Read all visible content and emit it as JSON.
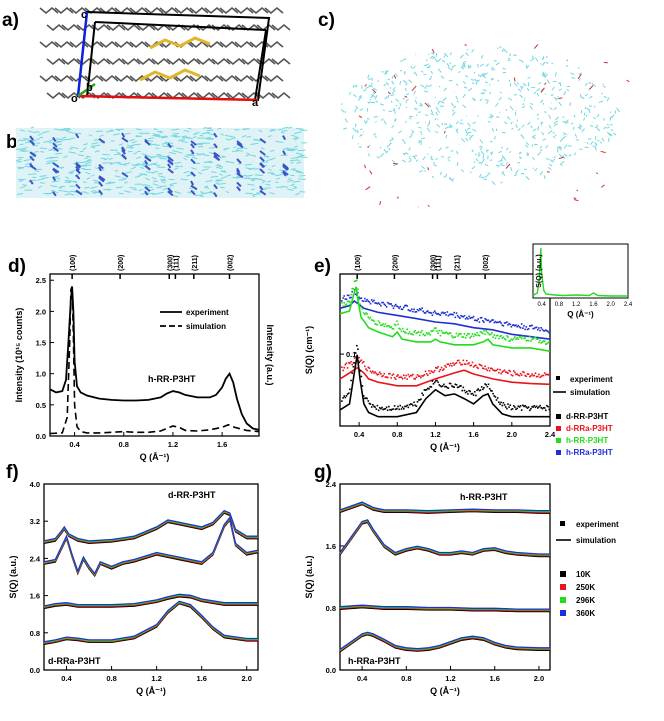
{
  "panel_labels": {
    "a": "a)",
    "b": "b)",
    "c": "c)",
    "d": "d)",
    "e": "e)",
    "f": "f)",
    "g": "g)"
  },
  "cell_labels": {
    "c": "c",
    "o": "o",
    "b": "b",
    "a": "a"
  },
  "colors": {
    "black": "#000000",
    "red": "#e8141b",
    "green": "#22dd1b",
    "blue": "#1f2fd6",
    "cyan": "#6fd7e0",
    "atom_blue": "#3a55c8",
    "sulfur": "#e0b72a",
    "cell_red": "#e01010",
    "cell_blue": "#1020e0",
    "carbon": "#555555"
  },
  "chart_data": [
    {
      "id": "d",
      "type": "line",
      "xlabel": "Q (Å⁻¹)",
      "ylabel": "Intensity (10¹⁵ counts)",
      "ylabel_right": "Intensity (a.u.)",
      "xlim": [
        0.2,
        1.9
      ],
      "ylim": [
        0,
        2.6
      ],
      "xticks": [
        0.4,
        0.8,
        1.2,
        1.6
      ],
      "xtick_labels": [
        "0.4",
        "0.8",
        "1.2",
        "1.6"
      ],
      "yticks": [
        0,
        0.5,
        1.0,
        1.5,
        2.0,
        2.5
      ],
      "ytick_labels": [
        "0.0",
        "0.5",
        "1.0",
        "1.5",
        "2.0",
        "2.5"
      ],
      "peak_labels": [
        {
          "label": "(100)",
          "q": 0.38
        },
        {
          "label": "(200)",
          "q": 0.77
        },
        {
          "label": "(300)",
          "q": 1.17
        },
        {
          "label": "(111)",
          "q": 1.22
        },
        {
          "label": "(211)",
          "q": 1.37
        },
        {
          "label": "(002)",
          "q": 1.66
        }
      ],
      "legend": [
        {
          "label": "experiment",
          "style": "solid"
        },
        {
          "label": "simulation",
          "style": "dashed"
        }
      ],
      "annotation": "h-RR-P3HT",
      "series": [
        {
          "name": "experiment",
          "style": "solid",
          "x": [
            0.2,
            0.25,
            0.3,
            0.33,
            0.35,
            0.37,
            0.38,
            0.39,
            0.4,
            0.42,
            0.45,
            0.5,
            0.6,
            0.7,
            0.8,
            0.9,
            1.0,
            1.1,
            1.15,
            1.2,
            1.25,
            1.3,
            1.4,
            1.5,
            1.55,
            1.6,
            1.63,
            1.66,
            1.69,
            1.72,
            1.76,
            1.8,
            1.85,
            1.9
          ],
          "y": [
            0.75,
            0.7,
            0.72,
            0.9,
            1.5,
            2.2,
            2.4,
            2.0,
            1.2,
            0.8,
            0.7,
            0.65,
            0.6,
            0.58,
            0.57,
            0.57,
            0.58,
            0.62,
            0.68,
            0.72,
            0.7,
            0.66,
            0.62,
            0.62,
            0.66,
            0.78,
            0.92,
            1.0,
            0.86,
            0.6,
            0.35,
            0.2,
            0.12,
            0.1
          ]
        },
        {
          "name": "simulation",
          "style": "dashed",
          "x": [
            0.2,
            0.3,
            0.34,
            0.36,
            0.37,
            0.38,
            0.39,
            0.4,
            0.42,
            0.45,
            0.5,
            0.6,
            0.7,
            0.8,
            0.9,
            1.0,
            1.1,
            1.2,
            1.25,
            1.3,
            1.4,
            1.5,
            1.6,
            1.65,
            1.7,
            1.8,
            1.9
          ],
          "y": [
            0.04,
            0.05,
            0.3,
            1.5,
            2.35,
            2.4,
            1.6,
            0.5,
            0.15,
            0.07,
            0.05,
            0.05,
            0.06,
            0.07,
            0.06,
            0.06,
            0.08,
            0.16,
            0.14,
            0.09,
            0.08,
            0.1,
            0.14,
            0.18,
            0.14,
            0.09,
            0.07
          ]
        }
      ]
    },
    {
      "id": "e",
      "type": "line",
      "xlabel": "Q (Å⁻¹)",
      "ylabel": "S(Q) (cm⁻¹)",
      "xlim": [
        0.2,
        2.4
      ],
      "ylim_log": [
        0.02,
        0.6
      ],
      "xticks": [
        0.4,
        0.8,
        1.2,
        1.6,
        2.0,
        2.4
      ],
      "xtick_labels": [
        "0.4",
        "0.8",
        "1.2",
        "1.6",
        "2.0",
        "2.4"
      ],
      "ytick_labels": [
        {
          "label": "0.1",
          "value": 0.1
        }
      ],
      "peak_labels": [
        {
          "label": "(100)",
          "q": 0.38
        },
        {
          "label": "(200)",
          "q": 0.77
        },
        {
          "label": "(300)",
          "q": 1.17
        },
        {
          "label": "(111)",
          "q": 1.22
        },
        {
          "label": "(211)",
          "q": 1.42
        },
        {
          "label": "(002)",
          "q": 1.72
        }
      ],
      "legend_style": [
        {
          "label": "experiment",
          "style": "dots"
        },
        {
          "label": "simulation",
          "style": "line"
        }
      ],
      "legend_samples": [
        {
          "label": "d-RR-P3HT",
          "color": "#000000",
          "marker": "square"
        },
        {
          "label": "d-RRa-P3HT",
          "color": "#e8141b",
          "marker": "circle"
        },
        {
          "label": "h-RR-P3HT",
          "color": "#22dd1b",
          "marker": "triangle"
        },
        {
          "label": "h-RRa-P3HT",
          "color": "#1f2fd6",
          "marker": "triangle-down"
        }
      ],
      "series": [
        {
          "name": "h-RRa-P3HT",
          "color": "#1f2fd6",
          "x": [
            0.2,
            0.3,
            0.35,
            0.4,
            0.45,
            0.5,
            0.6,
            0.8,
            1.0,
            1.2,
            1.4,
            1.6,
            1.8,
            2.0,
            2.2,
            2.4
          ],
          "y": [
            0.34,
            0.36,
            0.4,
            0.37,
            0.34,
            0.33,
            0.31,
            0.29,
            0.27,
            0.25,
            0.24,
            0.22,
            0.21,
            0.19,
            0.18,
            0.17
          ]
        },
        {
          "name": "h-RR-P3HT",
          "color": "#22dd1b",
          "x": [
            0.2,
            0.3,
            0.34,
            0.37,
            0.39,
            0.42,
            0.5,
            0.6,
            0.75,
            0.8,
            0.85,
            1.0,
            1.15,
            1.2,
            1.25,
            1.4,
            1.6,
            1.7,
            1.75,
            1.8,
            2.0,
            2.2,
            2.4
          ],
          "y": [
            0.3,
            0.32,
            0.45,
            0.55,
            0.4,
            0.28,
            0.22,
            0.2,
            0.18,
            0.2,
            0.17,
            0.16,
            0.16,
            0.17,
            0.16,
            0.15,
            0.15,
            0.16,
            0.17,
            0.15,
            0.14,
            0.14,
            0.13
          ]
        },
        {
          "name": "d-RRa-P3HT",
          "color": "#e8141b",
          "x": [
            0.2,
            0.3,
            0.38,
            0.45,
            0.5,
            0.6,
            0.8,
            1.0,
            1.2,
            1.4,
            1.5,
            1.6,
            1.8,
            2.0,
            2.2,
            2.4
          ],
          "y": [
            0.07,
            0.08,
            0.09,
            0.08,
            0.07,
            0.065,
            0.06,
            0.06,
            0.07,
            0.08,
            0.085,
            0.078,
            0.07,
            0.065,
            0.063,
            0.062
          ]
        },
        {
          "name": "d-RR-P3HT",
          "color": "#000000",
          "x": [
            0.2,
            0.3,
            0.35,
            0.38,
            0.41,
            0.45,
            0.5,
            0.6,
            0.8,
            1.0,
            1.1,
            1.2,
            1.3,
            1.4,
            1.5,
            1.6,
            1.7,
            1.75,
            1.8,
            1.9,
            2.0,
            2.2,
            2.4
          ],
          "y": [
            0.035,
            0.04,
            0.08,
            0.12,
            0.07,
            0.04,
            0.033,
            0.03,
            0.03,
            0.033,
            0.045,
            0.055,
            0.048,
            0.05,
            0.045,
            0.04,
            0.048,
            0.05,
            0.04,
            0.032,
            0.03,
            0.03,
            0.03
          ]
        }
      ],
      "inset": {
        "xlabel": "Q (Å⁻¹)",
        "ylabel": "S(Q) (a.u.)",
        "xticks": [
          0.4,
          0.8,
          1.2,
          1.6,
          2.0,
          2.4
        ],
        "xtick_labels": [
          "0.4",
          "0.8",
          "1.2",
          "1.6",
          "2.0",
          "2.4"
        ],
        "xlim": [
          0.2,
          2.4
        ],
        "ylim": [
          0,
          1
        ],
        "x": [
          0.2,
          0.3,
          0.35,
          0.38,
          0.4,
          0.45,
          0.5,
          0.7,
          0.9,
          1.2,
          1.5,
          1.6,
          1.7,
          2.0,
          2.4
        ],
        "y": [
          0.05,
          0.1,
          0.4,
          1.0,
          0.5,
          0.15,
          0.08,
          0.06,
          0.05,
          0.06,
          0.05,
          0.1,
          0.05,
          0.04,
          0.04
        ]
      }
    },
    {
      "id": "f",
      "type": "line",
      "xlabel": "Q (Å⁻¹)",
      "ylabel": "S(Q) (a.u.)",
      "xlim": [
        0.2,
        2.1
      ],
      "ylim": [
        0,
        4.0
      ],
      "xticks": [
        0.4,
        0.8,
        1.2,
        1.6,
        2.0
      ],
      "xtick_labels": [
        "0.4",
        "0.8",
        "1.2",
        "1.6",
        "2.0"
      ],
      "yticks": [
        0,
        0.8,
        1.6,
        2.4,
        3.2,
        4.0
      ],
      "ytick_labels": [
        "0.0",
        "0.8",
        "1.6",
        "2.4",
        "3.2",
        "4.0"
      ],
      "annotations": [
        "d-RR-P3HT",
        "d-RRa-P3HT"
      ],
      "temperatures": [
        "10K",
        "250K",
        "296K",
        "360K"
      ],
      "temperature_colors": [
        "#000000",
        "#e8141b",
        "#22dd1b",
        "#1f2fd6"
      ],
      "curves": [
        {
          "name": "d-RR-P3HT experiment",
          "x": [
            0.2,
            0.3,
            0.35,
            0.38,
            0.42,
            0.5,
            0.6,
            0.8,
            1.0,
            1.2,
            1.3,
            1.4,
            1.6,
            1.7,
            1.8,
            1.85,
            1.9,
            2.0,
            2.1
          ],
          "y": [
            2.75,
            2.8,
            2.95,
            3.05,
            2.9,
            2.8,
            2.75,
            2.78,
            2.85,
            3.05,
            3.2,
            3.15,
            3.05,
            3.15,
            3.4,
            3.35,
            3.0,
            2.85,
            2.85
          ]
        },
        {
          "name": "d-RR-P3HT simulation",
          "x": [
            0.2,
            0.3,
            0.4,
            0.45,
            0.5,
            0.55,
            0.6,
            0.65,
            0.7,
            0.8,
            0.9,
            1.0,
            1.2,
            1.4,
            1.5,
            1.6,
            1.7,
            1.8,
            1.85,
            1.9,
            2.0,
            2.1
          ],
          "y": [
            2.3,
            2.35,
            2.85,
            2.45,
            2.1,
            2.4,
            2.2,
            2.05,
            2.3,
            2.2,
            2.3,
            2.35,
            2.5,
            2.4,
            2.35,
            2.3,
            2.5,
            3.1,
            3.25,
            2.7,
            2.5,
            2.55
          ]
        },
        {
          "name": "d-RRa-P3HT experiment",
          "x": [
            0.2,
            0.3,
            0.4,
            0.5,
            0.8,
            1.0,
            1.2,
            1.3,
            1.4,
            1.5,
            1.6,
            1.8,
            2.0,
            2.1
          ],
          "y": [
            1.35,
            1.4,
            1.42,
            1.38,
            1.38,
            1.4,
            1.48,
            1.55,
            1.6,
            1.58,
            1.5,
            1.42,
            1.42,
            1.42
          ]
        },
        {
          "name": "d-RRa-P3HT simulation",
          "x": [
            0.2,
            0.3,
            0.4,
            0.5,
            0.6,
            0.8,
            1.0,
            1.2,
            1.3,
            1.4,
            1.5,
            1.6,
            1.7,
            1.8,
            2.0,
            2.1
          ],
          "y": [
            0.58,
            0.62,
            0.68,
            0.66,
            0.62,
            0.62,
            0.7,
            0.95,
            1.25,
            1.45,
            1.38,
            1.15,
            0.9,
            0.72,
            0.65,
            0.65
          ]
        }
      ]
    },
    {
      "id": "g",
      "type": "line",
      "xlabel": "Q (Å⁻¹)",
      "ylabel": "S(Q) (a.u.)",
      "xlim": [
        0.2,
        2.1
      ],
      "ylim": [
        0,
        2.4
      ],
      "xticks": [
        0.4,
        0.8,
        1.2,
        1.6,
        2.0
      ],
      "xtick_labels": [
        "0.4",
        "0.8",
        "1.2",
        "1.6",
        "2.0"
      ],
      "yticks": [
        0,
        0.8,
        1.6,
        2.4
      ],
      "ytick_labels": [
        "0.0",
        "0.8",
        "1.6",
        "2.4"
      ],
      "annotations": [
        "h-RR-P3HT",
        "h-RRa-P3HT"
      ],
      "legend_style": [
        {
          "label": "experiment",
          "style": "dots"
        },
        {
          "label": "simulation",
          "style": "line"
        }
      ],
      "temperatures": [
        "10K",
        "250K",
        "296K",
        "360K"
      ],
      "temperature_colors": [
        "#000000",
        "#e8141b",
        "#22dd1b",
        "#1f2fd6"
      ],
      "curves": [
        {
          "name": "h-RR-P3HT experiment",
          "x": [
            0.2,
            0.3,
            0.4,
            0.5,
            0.6,
            0.8,
            1.0,
            1.2,
            1.4,
            1.6,
            1.8,
            2.0,
            2.1
          ],
          "y": [
            2.05,
            2.1,
            2.15,
            2.08,
            2.05,
            2.05,
            2.04,
            2.05,
            2.06,
            2.05,
            2.05,
            2.04,
            2.04
          ]
        },
        {
          "name": "h-RR-P3HT simulation",
          "x": [
            0.2,
            0.3,
            0.4,
            0.45,
            0.5,
            0.6,
            0.7,
            0.8,
            0.9,
            1.0,
            1.1,
            1.2,
            1.3,
            1.4,
            1.5,
            1.6,
            1.7,
            1.8,
            2.0,
            2.1
          ],
          "y": [
            1.5,
            1.7,
            1.9,
            1.92,
            1.8,
            1.6,
            1.5,
            1.55,
            1.58,
            1.55,
            1.5,
            1.5,
            1.52,
            1.5,
            1.55,
            1.56,
            1.52,
            1.5,
            1.48,
            1.48
          ]
        },
        {
          "name": "h-RRa-P3HT experiment",
          "x": [
            0.2,
            0.4,
            0.6,
            0.8,
            1.0,
            1.2,
            1.4,
            1.6,
            1.8,
            2.0,
            2.1
          ],
          "y": [
            0.8,
            0.82,
            0.8,
            0.8,
            0.79,
            0.79,
            0.78,
            0.78,
            0.77,
            0.77,
            0.77
          ]
        },
        {
          "name": "h-RRa-P3HT simulation",
          "x": [
            0.2,
            0.3,
            0.4,
            0.45,
            0.5,
            0.6,
            0.7,
            0.8,
            0.9,
            1.0,
            1.1,
            1.2,
            1.3,
            1.4,
            1.5,
            1.6,
            1.7,
            1.8,
            2.0,
            2.1
          ],
          "y": [
            0.25,
            0.35,
            0.45,
            0.47,
            0.45,
            0.38,
            0.3,
            0.27,
            0.26,
            0.27,
            0.3,
            0.35,
            0.4,
            0.42,
            0.4,
            0.34,
            0.3,
            0.28,
            0.27,
            0.27
          ]
        }
      ]
    }
  ]
}
